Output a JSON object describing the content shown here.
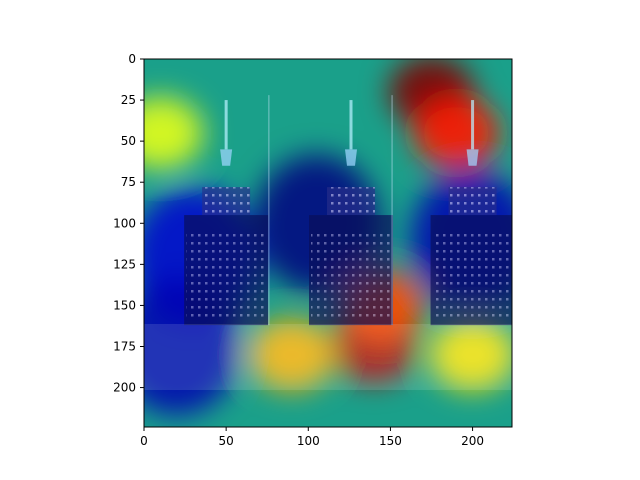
{
  "chart_data": {
    "type": "heatmap",
    "title": "",
    "xlabel": "",
    "ylabel": "",
    "xlim": [
      0,
      224
    ],
    "ylim": [
      224,
      0
    ],
    "y_inverted": true,
    "grid": false,
    "colormap": "jet",
    "x_ticks": [
      0,
      50,
      100,
      150,
      200
    ],
    "y_ticks": [
      0,
      25,
      50,
      75,
      100,
      125,
      150,
      175,
      200
    ],
    "x_tick_labels": [
      "0",
      "50",
      "100",
      "150",
      "200"
    ],
    "y_tick_labels": [
      "0",
      "25",
      "50",
      "75",
      "100",
      "125",
      "150",
      "175",
      "200"
    ],
    "underlying_image": "three-empire-state-buildings-night",
    "hotspots": [
      {
        "x": 175,
        "y": 20,
        "intensity": 1.0
      },
      {
        "x": 190,
        "y": 45,
        "intensity": 0.85
      },
      {
        "x": 140,
        "y": 175,
        "intensity": 0.95
      },
      {
        "x": 145,
        "y": 150,
        "intensity": 0.8
      },
      {
        "x": 90,
        "y": 180,
        "intensity": 0.7
      },
      {
        "x": 200,
        "y": 180,
        "intensity": 0.65
      },
      {
        "x": 10,
        "y": 45,
        "intensity": 0.6
      }
    ],
    "coldspots": [
      {
        "x": 105,
        "y": 100,
        "intensity": 0.0
      },
      {
        "x": 200,
        "y": 110,
        "intensity": 0.05
      },
      {
        "x": 30,
        "y": 120,
        "intensity": 0.08
      },
      {
        "x": 20,
        "y": 175,
        "intensity": 0.05
      }
    ]
  }
}
